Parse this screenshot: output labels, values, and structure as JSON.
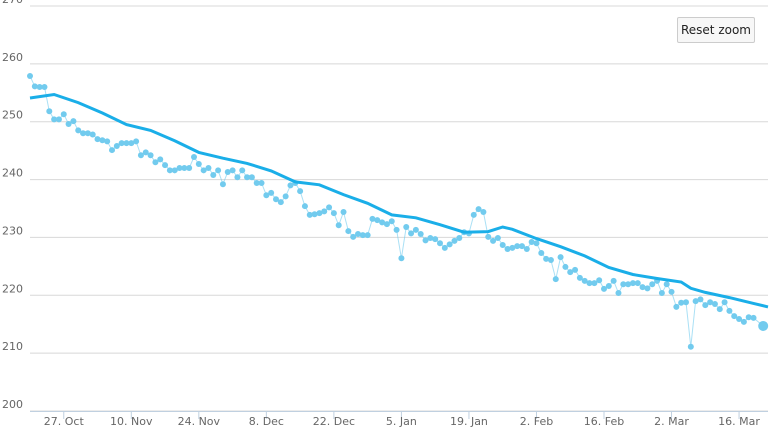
{
  "chart_data": {
    "type": "line",
    "button": "Reset zoom",
    "xlim": [
      0,
      153
    ],
    "xticks": [
      {
        "value": 7,
        "label": "27. Oct"
      },
      {
        "value": 21,
        "label": "10. Nov"
      },
      {
        "value": 35,
        "label": "24. Nov"
      },
      {
        "value": 49,
        "label": "8. Dec"
      },
      {
        "value": 63,
        "label": "22. Dec"
      },
      {
        "value": 77,
        "label": "5. Jan"
      },
      {
        "value": 91,
        "label": "19. Jan"
      },
      {
        "value": 105,
        "label": "2. Feb"
      },
      {
        "value": 119,
        "label": "16. Feb"
      },
      {
        "value": 133,
        "label": "2. Mar"
      },
      {
        "value": 147,
        "label": "16. Mar"
      }
    ],
    "ylim": [
      200,
      270
    ],
    "yticks": [
      200,
      210,
      220,
      230,
      240,
      250,
      260,
      270
    ],
    "grid": true,
    "series": [
      {
        "color": "#72cbee",
        "markers": true,
        "x": [
          0,
          1,
          2,
          3,
          4,
          5,
          6,
          7,
          8,
          9,
          10,
          11,
          12,
          13,
          14,
          15,
          16,
          17,
          18,
          19,
          20,
          21,
          22,
          23,
          24,
          25,
          26,
          27,
          28,
          29,
          30,
          31,
          32,
          33,
          34,
          35,
          36,
          37,
          38,
          39,
          40,
          41,
          42,
          43,
          44,
          45,
          46,
          47,
          48,
          49,
          50,
          51,
          52,
          53,
          54,
          55,
          56,
          57,
          58,
          59,
          60,
          61,
          62,
          63,
          64,
          65,
          66,
          67,
          68,
          69,
          70,
          71,
          72,
          73,
          74,
          75,
          76,
          77,
          78,
          79,
          80,
          81,
          82,
          83,
          84,
          85,
          86,
          87,
          88,
          89,
          90,
          91,
          92,
          93,
          94,
          95,
          96,
          97,
          98,
          99,
          100,
          101,
          102,
          103,
          104,
          105,
          106,
          107,
          108,
          109,
          110,
          111,
          112,
          113,
          114,
          115,
          116,
          117,
          118,
          119,
          120,
          121,
          122,
          123,
          124,
          125,
          126,
          127,
          128,
          129,
          130,
          131,
          132,
          133,
          134,
          135,
          136,
          137,
          138,
          139,
          140,
          141,
          142,
          143,
          144,
          145,
          146,
          147,
          148,
          149,
          150,
          152
        ],
        "values": [
          257.9,
          256.1,
          256.0,
          256.0,
          251.8,
          250.4,
          250.4,
          251.3,
          249.6,
          250.1,
          248.5,
          248.0,
          248.0,
          247.8,
          247.0,
          246.8,
          246.6,
          245.1,
          245.8,
          246.3,
          246.3,
          246.3,
          246.6,
          244.2,
          244.7,
          244.2,
          243.0,
          243.5,
          242.5,
          241.6,
          241.6,
          242.0,
          242.0,
          242.0,
          243.9,
          242.7,
          241.6,
          242.0,
          240.8,
          241.6,
          239.2,
          241.3,
          241.6,
          240.4,
          241.6,
          240.4,
          240.4,
          239.4,
          239.4,
          237.3,
          237.7,
          236.6,
          236.1,
          237.1,
          239.0,
          239.4,
          238.0,
          235.4,
          233.9,
          234.0,
          234.2,
          234.5,
          235.2,
          234.2,
          232.1,
          234.4,
          231.1,
          230.1,
          230.6,
          230.4,
          230.4,
          233.2,
          233.0,
          232.6,
          232.3,
          232.8,
          231.3,
          226.4,
          231.8,
          230.7,
          231.3,
          230.6,
          229.5,
          229.9,
          229.7,
          229.0,
          228.2,
          228.8,
          229.4,
          229.9,
          230.9,
          230.7,
          233.9,
          234.9,
          234.4,
          230.1,
          229.4,
          229.9,
          228.7,
          228.0,
          228.2,
          228.5,
          228.5,
          228.0,
          229.2,
          229.0,
          227.3,
          226.3,
          226.1,
          222.8,
          226.6,
          224.9,
          224.0,
          224.4,
          223.0,
          222.5,
          222.1,
          222.1,
          222.6,
          221.1,
          221.6,
          222.5,
          220.4,
          221.9,
          221.9,
          222.1,
          222.1,
          221.4,
          221.2,
          221.9,
          222.5,
          220.4,
          221.9,
          220.6,
          218.0,
          218.7,
          218.8,
          211.1,
          219.0,
          219.3,
          218.3,
          218.8,
          218.5,
          217.6,
          218.8,
          217.3,
          216.4,
          215.9,
          215.4,
          216.2,
          216.1,
          214.7
        ]
      },
      {
        "color": "#1aaee8",
        "markers": false,
        "x": [
          0,
          5,
          10,
          15,
          20,
          25,
          30,
          35,
          40,
          45,
          50,
          55,
          60,
          65,
          70,
          75,
          80,
          85,
          90,
          95,
          98,
          100,
          105,
          110,
          115,
          120,
          125,
          130,
          135,
          137,
          140,
          145,
          150,
          153
        ],
        "values": [
          254.1,
          254.7,
          253.3,
          251.5,
          249.5,
          248.5,
          246.7,
          244.7,
          243.7,
          242.8,
          241.5,
          239.6,
          239.1,
          237.4,
          235.9,
          233.9,
          233.4,
          232.2,
          230.9,
          231.0,
          231.8,
          231.4,
          229.8,
          228.4,
          226.8,
          224.8,
          223.6,
          222.9,
          222.3,
          221.2,
          220.5,
          219.6,
          218.6,
          218.0
        ]
      }
    ]
  }
}
